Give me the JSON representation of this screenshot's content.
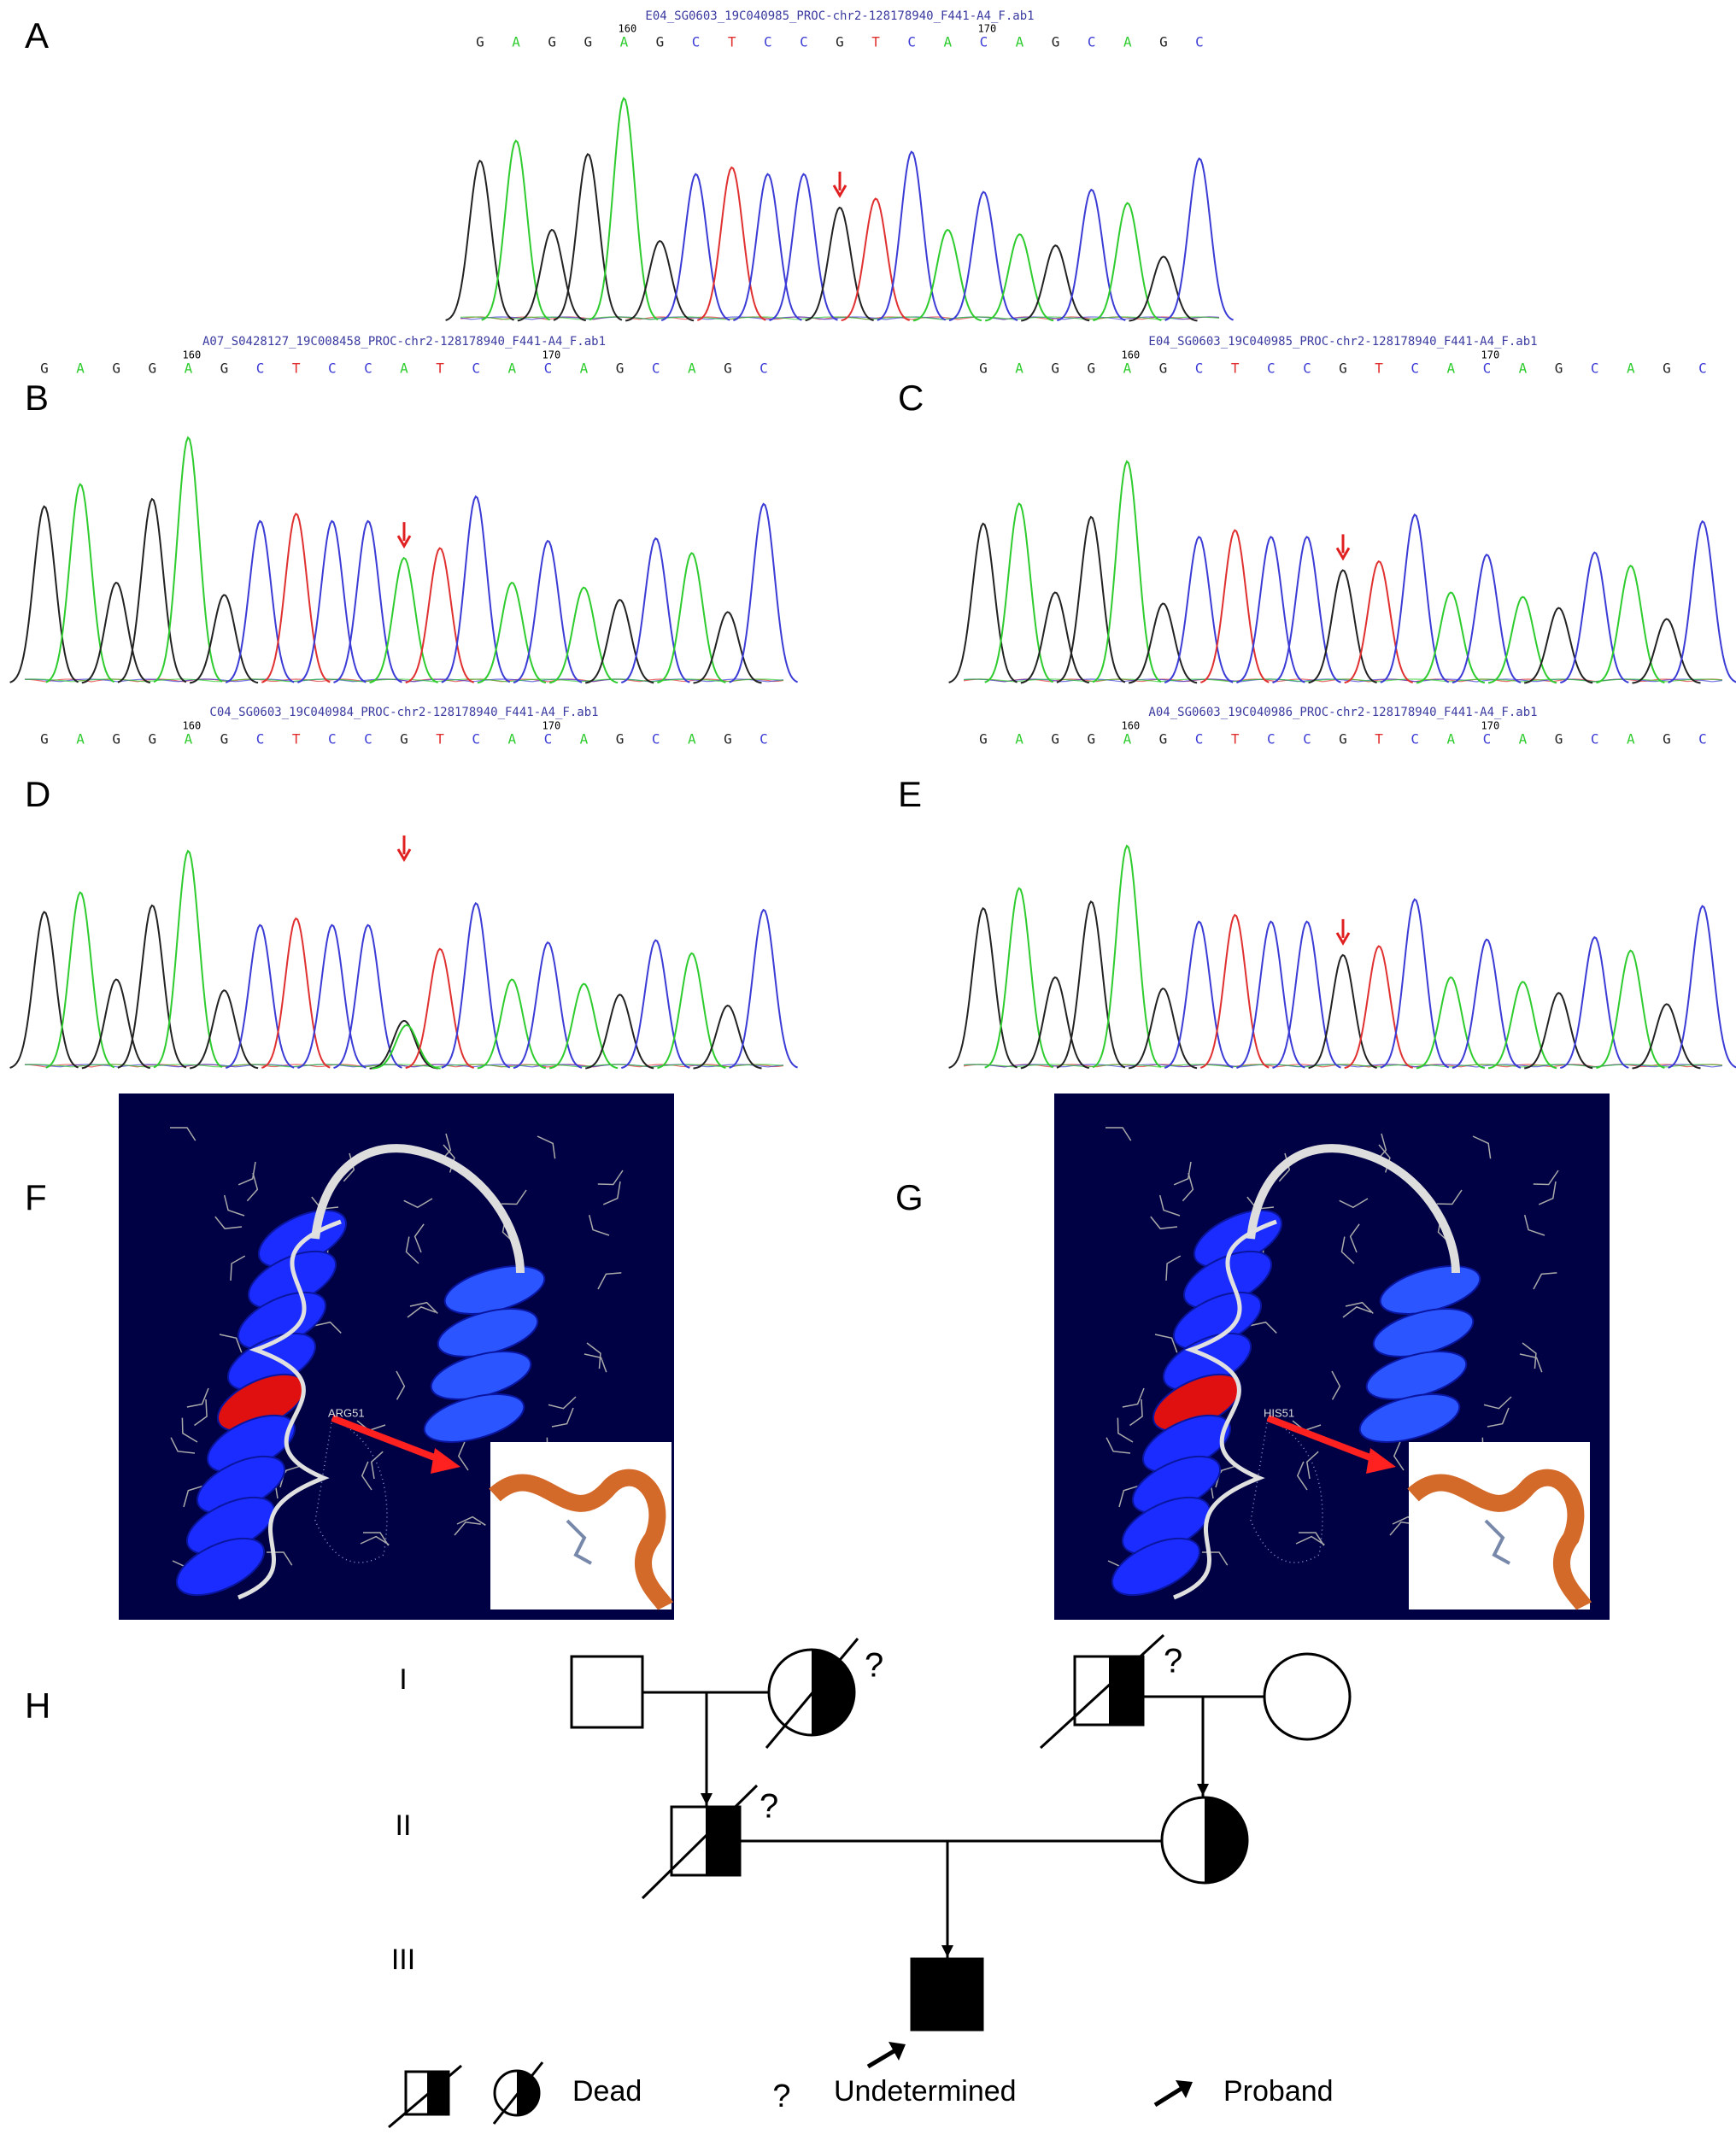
{
  "panels": {
    "A": {
      "label": "A",
      "file": "E04_SG0603_19C040985_PROC-chr2-128178940_F441-A4_F.ab1",
      "sequence": [
        "G",
        "A",
        "G",
        "G",
        "A",
        "G",
        "C",
        "T",
        "C",
        "C",
        "G",
        "T",
        "C",
        "A",
        "C",
        "A",
        "G",
        "C",
        "A",
        "G",
        "C"
      ],
      "ticks": [
        "160",
        "170"
      ]
    },
    "B": {
      "label": "B",
      "file": "A07_S0428127_19C008458_PROC-chr2-128178940_F441-A4_F.ab1",
      "sequence": [
        "G",
        "A",
        "G",
        "G",
        "A",
        "G",
        "C",
        "T",
        "C",
        "C",
        "A",
        "T",
        "C",
        "A",
        "C",
        "A",
        "G",
        "C",
        "A",
        "G",
        "C"
      ],
      "ticks": [
        "160",
        "170"
      ]
    },
    "C": {
      "label": "C",
      "file": "E04_SG0603_19C040985_PROC-chr2-128178940_F441-A4_F.ab1",
      "sequence": [
        "G",
        "A",
        "G",
        "G",
        "A",
        "G",
        "C",
        "T",
        "C",
        "C",
        "G",
        "T",
        "C",
        "A",
        "C",
        "A",
        "G",
        "C",
        "A",
        "G",
        "C"
      ],
      "ticks": [
        "160",
        "170"
      ]
    },
    "D": {
      "label": "D",
      "file": "C04_SG0603_19C040984_PROC-chr2-128178940_F441-A4_F.ab1",
      "sequence": [
        "G",
        "A",
        "G",
        "G",
        "A",
        "G",
        "C",
        "T",
        "C",
        "C",
        "G",
        "T",
        "C",
        "A",
        "C",
        "A",
        "G",
        "C",
        "A",
        "G",
        "C"
      ],
      "ticks": [
        "160",
        "170"
      ]
    },
    "E": {
      "label": "E",
      "file": "A04_SG0603_19C040986_PROC-chr2-128178940_F441-A4_F.ab1",
      "sequence": [
        "G",
        "A",
        "G",
        "G",
        "A",
        "G",
        "C",
        "T",
        "C",
        "C",
        "G",
        "T",
        "C",
        "A",
        "C",
        "A",
        "G",
        "C",
        "A",
        "G",
        "C"
      ],
      "ticks": [
        "160",
        "170"
      ]
    }
  },
  "base_colors": {
    "A": "#2ecc2e",
    "C": "#3b3bd6",
    "G": "#222222",
    "T": "#e03030"
  },
  "structures": {
    "F": {
      "label": "F",
      "residue": "ARG51"
    },
    "G": {
      "label": "G",
      "residue": "HIS51"
    }
  },
  "pedigree": {
    "label": "H",
    "generations": [
      "I",
      "II",
      "III"
    ],
    "undetermined_marks": [
      "?",
      "?",
      "?"
    ],
    "legend": {
      "dead": "Dead",
      "undetermined_symbol": "?",
      "undetermined": "Undetermined",
      "proband": "Proband"
    }
  }
}
